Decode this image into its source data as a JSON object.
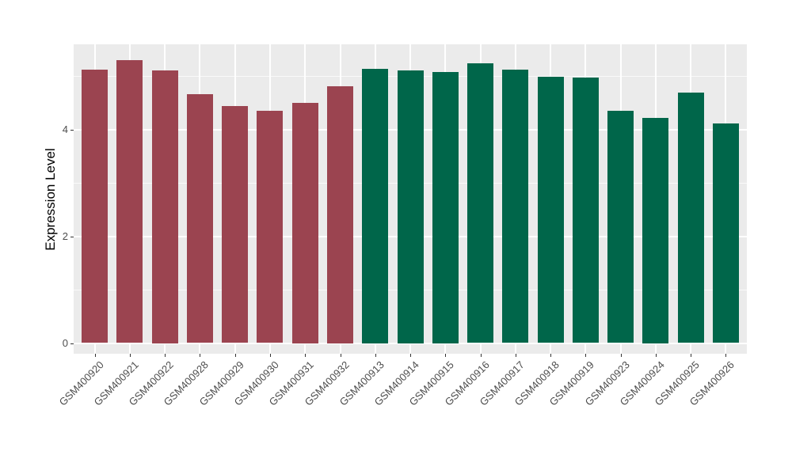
{
  "chart_data": {
    "type": "bar",
    "title": "",
    "xlabel": "",
    "ylabel": "Expression Level",
    "categories": [
      "GSM400920",
      "GSM400921",
      "GSM400922",
      "GSM400928",
      "GSM400929",
      "GSM400930",
      "GSM400931",
      "GSM400932",
      "GSM400913",
      "GSM400914",
      "GSM400915",
      "GSM400916",
      "GSM400917",
      "GSM400918",
      "GSM400919",
      "GSM400923",
      "GSM400924",
      "GSM400925",
      "GSM400926"
    ],
    "values": [
      5.13,
      5.3,
      5.11,
      4.67,
      4.44,
      4.36,
      4.5,
      4.81,
      5.14,
      5.11,
      5.08,
      5.24,
      5.13,
      4.99,
      4.98,
      4.36,
      4.22,
      4.7,
      4.12
    ],
    "groups": [
      "group1",
      "group1",
      "group1",
      "group1",
      "group1",
      "group1",
      "group1",
      "group1",
      "group2",
      "group2",
      "group2",
      "group2",
      "group2",
      "group2",
      "group2",
      "group2",
      "group2",
      "group2",
      "group2"
    ],
    "group_colors": {
      "group1": "#9B4450",
      "group2": "#00664A"
    },
    "yticks": [
      0,
      2,
      4
    ],
    "minor_yticks": [
      1,
      3,
      5
    ],
    "ylim": [
      -0.2,
      5.6
    ],
    "grid": true,
    "legend_position": "none",
    "panel_background": "#EBEBEB",
    "grid_color": "#FFFFFF",
    "tick_label_color": "#4D4D4D",
    "axis_title_color": "#000000"
  }
}
